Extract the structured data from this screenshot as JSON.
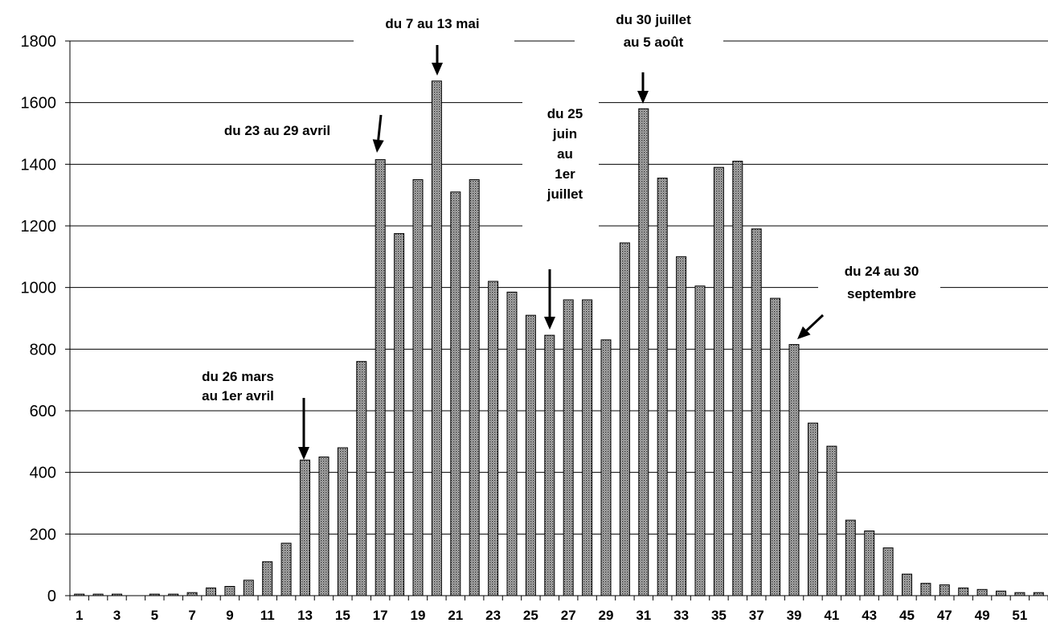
{
  "chart_data": {
    "type": "bar",
    "title": "",
    "xlabel": "",
    "ylabel": "",
    "ylim": [
      0,
      1800
    ],
    "yticks": [
      0,
      200,
      400,
      600,
      800,
      1000,
      1200,
      1400,
      1600,
      1800
    ],
    "grid": "horizontal",
    "x": [
      1,
      2,
      3,
      4,
      5,
      6,
      7,
      8,
      9,
      10,
      11,
      12,
      13,
      14,
      15,
      16,
      17,
      18,
      19,
      20,
      21,
      22,
      23,
      24,
      25,
      26,
      27,
      28,
      29,
      30,
      31,
      32,
      33,
      34,
      35,
      36,
      37,
      38,
      39,
      40,
      41,
      42,
      43,
      44,
      45,
      46,
      47,
      48,
      49,
      50,
      51,
      52
    ],
    "xtick_labels": [
      "1",
      "3",
      "5",
      "7",
      "9",
      "11",
      "13",
      "15",
      "17",
      "19",
      "21",
      "23",
      "25",
      "27",
      "29",
      "31",
      "33",
      "35",
      "37",
      "39",
      "41",
      "43",
      "45",
      "47",
      "49",
      "51"
    ],
    "values": [
      5,
      5,
      5,
      0,
      5,
      5,
      10,
      25,
      30,
      50,
      110,
      170,
      440,
      450,
      480,
      760,
      1415,
      1175,
      1350,
      1670,
      1310,
      1350,
      1020,
      985,
      910,
      845,
      960,
      960,
      830,
      1145,
      1580,
      1355,
      1100,
      1005,
      1390,
      1410,
      1190,
      965,
      815,
      560,
      485,
      245,
      210,
      155,
      70,
      40,
      35,
      25,
      20,
      15,
      10,
      10
    ],
    "annotations": [
      {
        "lines": [
          "du 26 mars",
          "au 1er avril"
        ],
        "week": 13
      },
      {
        "lines": [
          "du 23 au 29 avril"
        ],
        "week": 17
      },
      {
        "lines": [
          "du 7 au 13 mai"
        ],
        "week": 20
      },
      {
        "lines": [
          "du 25",
          "juin",
          "au",
          "1er",
          "juillet"
        ],
        "week": 26
      },
      {
        "lines": [
          "du 30 juillet",
          "au 5 août"
        ],
        "week": 31
      },
      {
        "lines": [
          "du 24 au 30",
          "septembre"
        ],
        "week": 39
      }
    ]
  }
}
